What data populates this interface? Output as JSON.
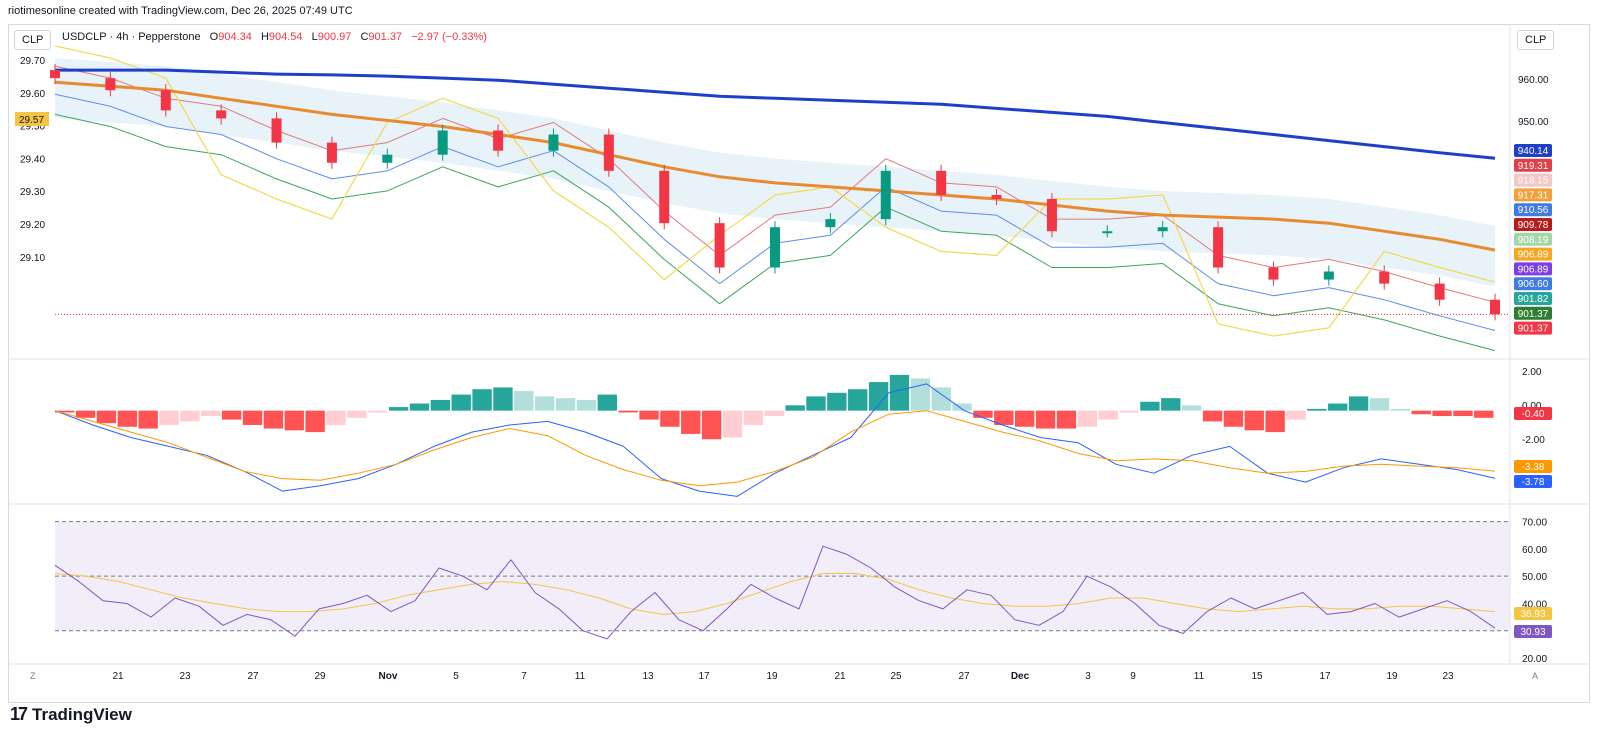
{
  "header": {
    "caption": "riotimesonline created with TradingView.com, Dec 26, 2025 07:49 UTC"
  },
  "currency_left": "CLP",
  "currency_right": "CLP",
  "legend": {
    "symbol": "USDCLP · 4h · Pepperstone",
    "o_label": "O",
    "o_value": "904.34",
    "h_label": "H",
    "h_value": "904.54",
    "l_label": "L",
    "l_value": "900.97",
    "c_label": "C",
    "c_value": "901.37",
    "change": "−2.97 (−0.33%)"
  },
  "brand": {
    "name": "TradingView",
    "logo": "17"
  },
  "corner_left": "Z",
  "corner_right": "A",
  "colors": {
    "up": "#089981",
    "down": "#f23645",
    "ma200": "#1e40c8",
    "ma100": "#e88a2e",
    "macd": "#2962ff",
    "signal": "#ff9800",
    "rsi": "#7e57c2",
    "rsi_ma": "#f5c542"
  },
  "chart_data": [
    {
      "type": "candlestick",
      "title": "USDCLP · 4h · Pepperstone",
      "left_axis": {
        "ticks": [
          "29.70",
          "29.60",
          "29.50",
          "29.40",
          "29.30",
          "29.20",
          "29.10"
        ],
        "badge": "29.57"
      },
      "right_axis": {
        "ticks": [
          "960.00",
          "950.00"
        ]
      },
      "ylim": [
        895,
        965
      ],
      "x_ticks": [
        "21",
        "23",
        "27",
        "29",
        "Nov",
        "5",
        "7",
        "11",
        "13",
        "17",
        "19",
        "21",
        "25",
        "27",
        "Dec",
        "3",
        "9",
        "11",
        "15",
        "17",
        "19",
        "23"
      ],
      "price_labels": [
        {
          "text": "940.14",
          "color": "#1e40c8"
        },
        {
          "text": "919.31",
          "color": "#e0404a"
        },
        {
          "text": "918.15",
          "color": "#f4c7c7"
        },
        {
          "text": "917.31",
          "color": "#f2a13a"
        },
        {
          "text": "910.56",
          "color": "#3f7be0"
        },
        {
          "text": "909.78",
          "color": "#b71c1c"
        },
        {
          "text": "908.19",
          "color": "#a5d6a7"
        },
        {
          "text": "906.89",
          "color": "#f5a623"
        },
        {
          "text": "906.89",
          "color": "#7b3fe4"
        },
        {
          "text": "906.60",
          "color": "#3f7be0"
        },
        {
          "text": "901.82",
          "color": "#26a69a"
        },
        {
          "text": "901.37",
          "color": "#2e7d32"
        },
        {
          "text": "901.37",
          "color": "#f23645"
        }
      ],
      "series": [
        {
          "name": "MA200",
          "values": [
            962,
            962,
            962,
            961.5,
            961,
            960.8,
            960.5,
            960,
            959.5,
            958.5,
            957.5,
            956.5,
            955.5,
            955,
            954.5,
            954,
            953.5,
            952.5,
            951.5,
            950.5,
            949,
            947.5,
            946,
            944.5,
            943,
            941.5,
            940.14
          ]
        },
        {
          "name": "MA100",
          "values": [
            959,
            958,
            957,
            955,
            953,
            951,
            949.5,
            948,
            946,
            944,
            941,
            938,
            935.5,
            934,
            933,
            932,
            931,
            930,
            928.5,
            927,
            926,
            925.5,
            925,
            924,
            922,
            920,
            917.31
          ]
        },
        {
          "name": "Close",
          "values": [
            960,
            957,
            952,
            950,
            944,
            939,
            941,
            947,
            942,
            946,
            937,
            924,
            913,
            923,
            925,
            937,
            931,
            930,
            922,
            922,
            923,
            913,
            910,
            912,
            909,
            905,
            901.37
          ]
        }
      ]
    },
    {
      "type": "bar",
      "title": "MACD",
      "y_ticks": [
        "2.00",
        "0.00",
        "-2.00"
      ],
      "ylim": [
        -5,
        2.5
      ],
      "value_labels": [
        {
          "text": "-0.40",
          "color": "#f23645"
        },
        {
          "text": "-3.38",
          "color": "#ff9800"
        },
        {
          "text": "-3.78",
          "color": "#2962ff"
        }
      ],
      "histogram": [
        -0.1,
        -0.4,
        -0.7,
        -0.9,
        -1.0,
        -0.8,
        -0.6,
        -0.3,
        -0.5,
        -0.8,
        -1.0,
        -1.1,
        -1.2,
        -0.8,
        -0.4,
        -0.1,
        0.2,
        0.4,
        0.6,
        0.9,
        1.2,
        1.3,
        1.1,
        0.8,
        0.7,
        0.6,
        0.9,
        -0.1,
        -0.5,
        -0.9,
        -1.3,
        -1.6,
        -1.5,
        -0.8,
        -0.3,
        0.3,
        0.8,
        1.0,
        1.2,
        1.6,
        2.0,
        1.8,
        1.3,
        0.4,
        -0.4,
        -0.8,
        -0.9,
        -1.0,
        -1.0,
        -0.9,
        -0.5,
        -0.1,
        0.5,
        0.7,
        0.3,
        -0.6,
        -0.9,
        -1.1,
        -1.2,
        -0.5,
        0.1,
        0.4,
        0.8,
        0.7,
        0.1,
        -0.2,
        -0.3,
        -0.3,
        -0.4
      ],
      "series": [
        {
          "name": "MACD",
          "values": [
            0.0,
            -0.8,
            -1.5,
            -2.0,
            -2.5,
            -3.4,
            -4.5,
            -4.2,
            -3.8,
            -3.0,
            -2.0,
            -1.2,
            -0.8,
            -0.6,
            -1.2,
            -2.0,
            -3.8,
            -4.5,
            -4.8,
            -3.5,
            -2.5,
            -1.5,
            1.0,
            1.5,
            0.0,
            -0.8,
            -1.5,
            -1.8,
            -3.0,
            -3.5,
            -2.5,
            -2.0,
            -3.5,
            -4.0,
            -3.2,
            -2.7,
            -3.0,
            -3.3,
            -3.78
          ]
        },
        {
          "name": "Signal",
          "values": [
            0.0,
            -0.6,
            -1.2,
            -1.8,
            -2.6,
            -3.4,
            -3.8,
            -3.9,
            -3.5,
            -3.0,
            -2.2,
            -1.5,
            -1.0,
            -1.4,
            -2.5,
            -3.3,
            -3.9,
            -4.2,
            -4.0,
            -3.4,
            -2.6,
            -1.2,
            -0.2,
            0.0,
            -0.6,
            -1.2,
            -1.7,
            -2.4,
            -2.8,
            -2.7,
            -2.8,
            -3.2,
            -3.5,
            -3.4,
            -3.1,
            -3.0,
            -3.1,
            -3.2,
            -3.38
          ]
        }
      ]
    },
    {
      "type": "line",
      "title": "RSI",
      "y_ticks": [
        "70.00",
        "60.00",
        "50.00",
        "40.00",
        "20.00"
      ],
      "ylim": [
        20,
        75
      ],
      "bands": [
        70,
        50,
        30
      ],
      "value_labels": [
        {
          "text": "36.93",
          "color": "#f5c542"
        },
        {
          "text": "30.93",
          "color": "#7e57c2"
        }
      ],
      "series": [
        {
          "name": "RSI",
          "values": [
            54,
            48,
            41,
            40,
            35,
            42,
            39,
            32,
            36,
            34,
            28,
            38,
            40,
            43,
            37,
            41,
            53,
            50,
            45,
            56,
            44,
            38,
            30,
            27,
            37,
            44,
            34,
            30,
            38,
            47,
            42,
            38,
            61,
            58,
            53,
            46,
            41,
            38,
            45,
            43,
            34,
            32,
            37,
            50,
            46,
            40,
            32,
            29,
            37,
            42,
            38,
            41,
            44,
            36,
            37,
            40,
            35,
            38,
            41,
            37,
            30.93
          ]
        },
        {
          "name": "RSI MA",
          "values": [
            51,
            50,
            48,
            45,
            42,
            40,
            38,
            37,
            37,
            38,
            40,
            43,
            45,
            47,
            48,
            47,
            45,
            42,
            38,
            36,
            37,
            40,
            44,
            48,
            51,
            51,
            49,
            45,
            42,
            40,
            39,
            39,
            40,
            42,
            42,
            40,
            38,
            37,
            38,
            39,
            38,
            38,
            39,
            39,
            38,
            36.93
          ]
        }
      ]
    }
  ]
}
